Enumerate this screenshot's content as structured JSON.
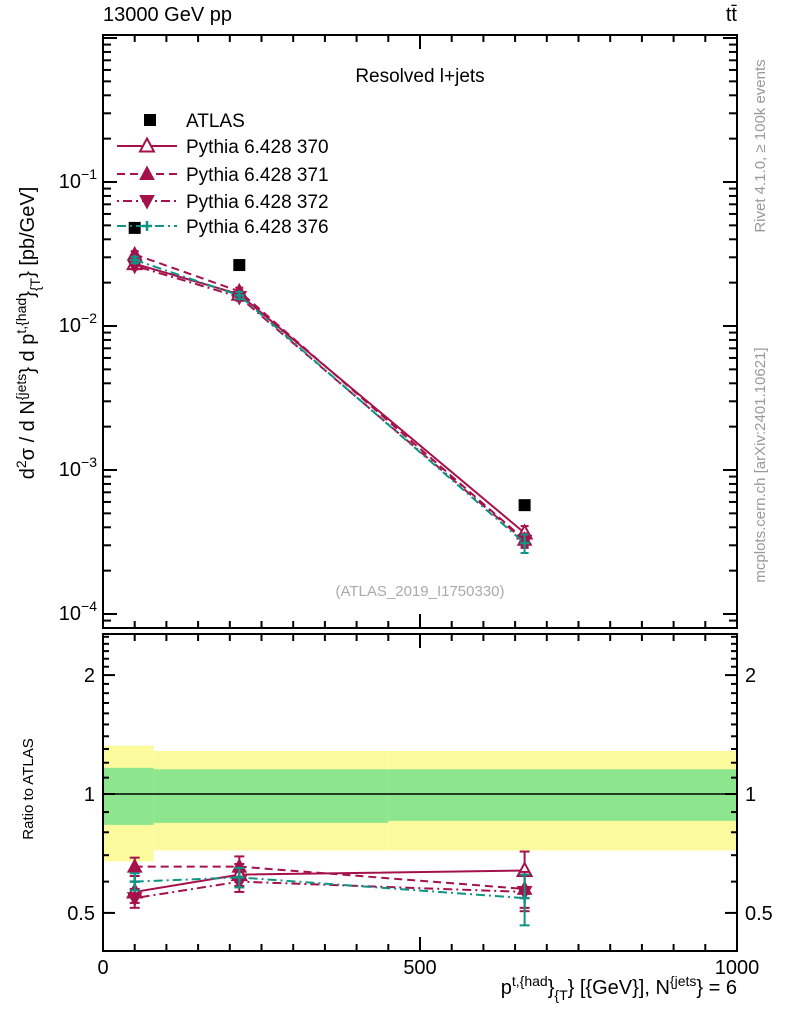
{
  "header": {
    "left": "13000 GeV pp",
    "right": "tt̄"
  },
  "panel_title": "Resolved l+jets",
  "watermark": "(ATLAS_2019_I1750330)",
  "side_captions": {
    "top": "Rivet 4.1.0, ≥ 100k events",
    "bottom": "mcplots.cern.ch [arXiv:2401.10621]"
  },
  "legend": {
    "items": [
      {
        "label": "ATLAS"
      },
      {
        "label": "Pythia 6.428 370"
      },
      {
        "label": "Pythia 6.428 371"
      },
      {
        "label": "Pythia 6.428 372"
      },
      {
        "label": "Pythia 6.428 376"
      }
    ]
  },
  "colors": {
    "crimson": "#A5124B",
    "teal": "#0F9485",
    "yellow_band": "#FBFB9E",
    "green_band": "#8DE68D",
    "gray_caption": "#999999",
    "watermark_gray": "#AAAAAA",
    "black": "#000000"
  },
  "chart_data": {
    "type": "line",
    "title": "Resolved l+jets",
    "xlabel_segments": [
      {
        "t": "p"
      },
      {
        "sup": "t,{had"
      },
      {
        "t": "}"
      },
      {
        "sub": "{T"
      },
      {
        "t": "} [{GeV}], N"
      },
      {
        "sup": "{jets"
      },
      {
        "t": "} = 6"
      }
    ],
    "ylabel_segments": [
      {
        "t": "d"
      },
      {
        "sup": "2"
      },
      {
        "t": "σ / d N"
      },
      {
        "sup": "{jets"
      },
      {
        "t": "} d p"
      },
      {
        "sup": "t,{had"
      },
      {
        "t": "}"
      },
      {
        "sub": "{T"
      },
      {
        "t": "} [pb/GeV]"
      }
    ],
    "ratio_label": "Ratio to ATLAS",
    "x": [
      50,
      215,
      665
    ],
    "xlim": [
      0,
      1000
    ],
    "x_ticks": [
      {
        "v": 0,
        "label": "0"
      },
      {
        "v": 500,
        "label": "500"
      },
      {
        "v": 1000,
        "label": "1000"
      }
    ],
    "x_minor_step": 50,
    "main_ylog": true,
    "main_ylim": [
      8e-05,
      1.05
    ],
    "main_y_labeled_exponents": [
      -1,
      -2,
      -3,
      -4
    ],
    "main_y_major_exponents": [
      0,
      -1,
      -2,
      -3,
      -4
    ],
    "ratio_ylog": true,
    "ratio_ylim": [
      0.403,
      2.54
    ],
    "ratio_ticks": [
      {
        "v": 0.5,
        "label": "0.5"
      },
      {
        "v": 1,
        "label": "1"
      },
      {
        "v": 2,
        "label": "2"
      }
    ],
    "bands": {
      "segments": [
        {
          "x0": 0,
          "x1": 80,
          "yellow": [
            0.675,
            1.325
          ],
          "green": [
            0.835,
            1.165
          ]
        },
        {
          "x0": 80,
          "x1": 450,
          "yellow": [
            0.72,
            1.285
          ],
          "green": [
            0.845,
            1.155
          ]
        },
        {
          "x0": 450,
          "x1": 1000,
          "yellow": [
            0.72,
            1.285
          ],
          "green": [
            0.855,
            1.155
          ]
        }
      ]
    },
    "series": [
      {
        "name": "ATLAS",
        "color": "#000000",
        "marker": "square",
        "line": "none",
        "values": [
          0.048,
          0.0265,
          0.00057
        ]
      },
      {
        "name": "Pythia 6.428 370",
        "color": "#A5124B",
        "marker": "triangle-open",
        "line": "solid",
        "values": [
          0.0271,
          0.0166,
          0.000365
        ],
        "ratio": [
          0.565,
          0.625,
          0.64
        ],
        "ratio_err": [
          0.035,
          0.04,
          0.075
        ]
      },
      {
        "name": "Pythia 6.428 371",
        "color": "#A5124B",
        "marker": "triangle-up",
        "line": "dash",
        "values": [
          0.0314,
          0.0174,
          0.000328
        ],
        "ratio": [
          0.655,
          0.655,
          0.575
        ],
        "ratio_err": [
          0.035,
          0.04,
          0.06
        ]
      },
      {
        "name": "Pythia 6.428 372",
        "color": "#A5124B",
        "marker": "triangle-down",
        "line": "dashdot",
        "values": [
          0.0262,
          0.0159,
          0.000322
        ],
        "ratio": [
          0.545,
          0.6,
          0.565
        ],
        "ratio_err": [
          0.03,
          0.035,
          0.06
        ]
      },
      {
        "name": "Pythia 6.428 376",
        "color": "#0F9485",
        "marker": "cross",
        "line": "dashdot2",
        "values": [
          0.0288,
          0.0163,
          0.000311
        ],
        "ratio": [
          0.6,
          0.615,
          0.545
        ],
        "ratio_err": [
          0.03,
          0.035,
          0.08
        ]
      }
    ]
  }
}
